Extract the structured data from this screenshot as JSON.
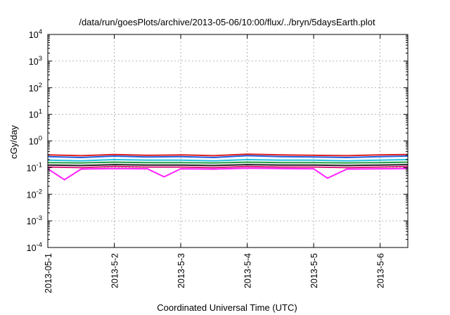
{
  "chart_data": {
    "type": "line",
    "title": "/data/run/goesPlots/archive/2013-05-06/10:00/flux/../bryn/5daysEarth.plot",
    "xlabel": "Coordinated Universal Time (UTC)",
    "ylabel": "cGy/day",
    "yscale": "log",
    "ylim": [
      0.0001,
      10000
    ],
    "ytick_exponents": [
      -4,
      -3,
      -2,
      -1,
      0,
      1,
      2,
      3,
      4
    ],
    "xlim": [
      "2013-05-01 00:00",
      "2013-05-06 10:00"
    ],
    "xtick_labels": [
      "2013-05-1",
      "2013-5-2",
      "2013-5-3",
      "2013-5-4",
      "2013-5-5",
      "2013-5-6"
    ],
    "xticks": [
      "2013-05-01",
      "2013-05-02",
      "2013-05-03",
      "2013-05-04",
      "2013-05-05",
      "2013-05-06"
    ],
    "grid": true,
    "legend": "none",
    "series": [
      {
        "color": "#e02020",
        "x": [
          "2013-05-01",
          "2013-05-01 12:00",
          "2013-05-02",
          "2013-05-02 12:00",
          "2013-05-03",
          "2013-05-03 12:00",
          "2013-05-04",
          "2013-05-04 12:00",
          "2013-05-05",
          "2013-05-05 12:00",
          "2013-05-06",
          "2013-05-06 10:00"
        ],
        "values": [
          0.3,
          0.28,
          0.31,
          0.29,
          0.3,
          0.28,
          0.32,
          0.3,
          0.29,
          0.28,
          0.3,
          0.31
        ]
      },
      {
        "color": "#2060e0",
        "x": [
          "2013-05-01",
          "2013-05-01 12:00",
          "2013-05-02",
          "2013-05-02 12:00",
          "2013-05-03",
          "2013-05-03 12:00",
          "2013-05-04",
          "2013-05-04 12:00",
          "2013-05-05",
          "2013-05-05 12:00",
          "2013-05-06",
          "2013-05-06 10:00"
        ],
        "values": [
          0.26,
          0.24,
          0.27,
          0.25,
          0.26,
          0.24,
          0.28,
          0.26,
          0.25,
          0.24,
          0.26,
          0.27
        ]
      },
      {
        "color": "#20c0e0",
        "x": [
          "2013-05-01",
          "2013-05-01 12:00",
          "2013-05-02",
          "2013-05-02 12:00",
          "2013-05-03",
          "2013-05-03 12:00",
          "2013-05-04",
          "2013-05-04 12:00",
          "2013-05-05",
          "2013-05-05 12:00",
          "2013-05-06",
          "2013-05-06 10:00"
        ],
        "values": [
          0.19,
          0.18,
          0.2,
          0.19,
          0.19,
          0.18,
          0.2,
          0.19,
          0.19,
          0.18,
          0.19,
          0.2
        ]
      },
      {
        "color": "#20a040",
        "x": [
          "2013-05-01",
          "2013-05-01 12:00",
          "2013-05-02",
          "2013-05-02 12:00",
          "2013-05-03",
          "2013-05-03 12:00",
          "2013-05-04",
          "2013-05-04 12:00",
          "2013-05-05",
          "2013-05-05 12:00",
          "2013-05-06",
          "2013-05-06 10:00"
        ],
        "values": [
          0.155,
          0.15,
          0.16,
          0.155,
          0.155,
          0.15,
          0.16,
          0.155,
          0.155,
          0.15,
          0.155,
          0.16
        ]
      },
      {
        "color": "#202020",
        "x": [
          "2013-05-01",
          "2013-05-01 12:00",
          "2013-05-02",
          "2013-05-02 12:00",
          "2013-05-03",
          "2013-05-03 12:00",
          "2013-05-04",
          "2013-05-04 12:00",
          "2013-05-05",
          "2013-05-05 12:00",
          "2013-05-06",
          "2013-05-06 10:00"
        ],
        "values": [
          0.125,
          0.12,
          0.13,
          0.125,
          0.125,
          0.12,
          0.13,
          0.125,
          0.125,
          0.12,
          0.125,
          0.13
        ]
      },
      {
        "color": "#e02080",
        "x": [
          "2013-05-01",
          "2013-05-01 12:00",
          "2013-05-02",
          "2013-05-02 12:00",
          "2013-05-03",
          "2013-05-03 12:00",
          "2013-05-04",
          "2013-05-04 12:00",
          "2013-05-05",
          "2013-05-05 12:00",
          "2013-05-06",
          "2013-05-06 10:00"
        ],
        "values": [
          0.105,
          0.1,
          0.11,
          0.105,
          0.105,
          0.1,
          0.11,
          0.105,
          0.105,
          0.1,
          0.105,
          0.11
        ]
      },
      {
        "color": "#ff20ff",
        "x": [
          "2013-05-01",
          "2013-05-01 06:00",
          "2013-05-01 12:00",
          "2013-05-02",
          "2013-05-02 12:00",
          "2013-05-02 18:00",
          "2013-05-03",
          "2013-05-03 12:00",
          "2013-05-04",
          "2013-05-04 12:00",
          "2013-05-05",
          "2013-05-05 05:00",
          "2013-05-05 12:00",
          "2013-05-06",
          "2013-05-06 10:00"
        ],
        "values": [
          0.09,
          0.035,
          0.088,
          0.092,
          0.09,
          0.045,
          0.09,
          0.088,
          0.095,
          0.092,
          0.09,
          0.04,
          0.088,
          0.09,
          0.092
        ]
      }
    ]
  }
}
